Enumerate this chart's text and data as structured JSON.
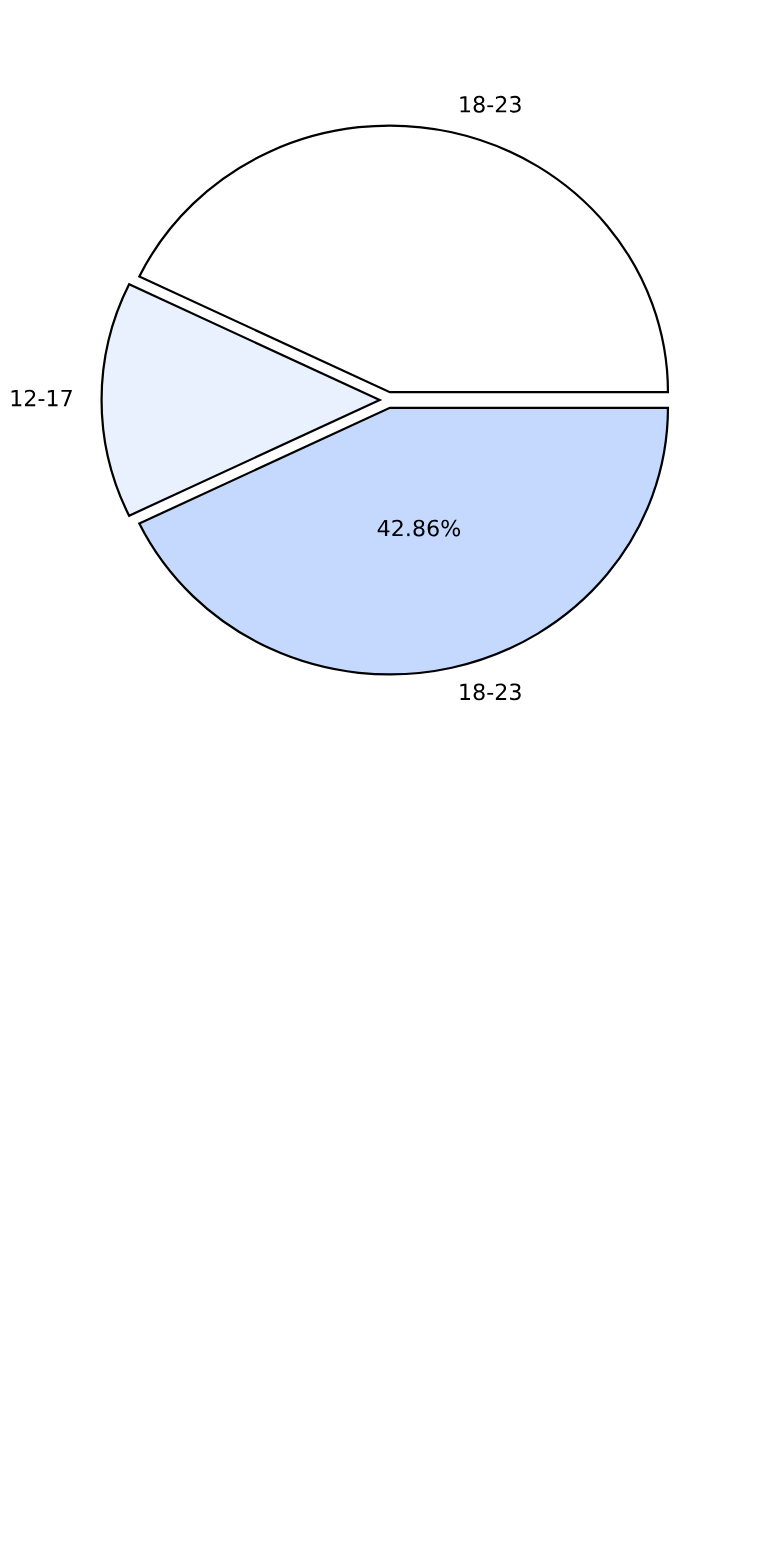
{
  "chart_data": {
    "type": "pie",
    "categories": [
      "18-23",
      "12-17",
      "18-23"
    ],
    "values": [
      42.86,
      14.29,
      42.86
    ],
    "colors": [
      "#c5d9fe",
      "#eaf1fe",
      "#ffffff"
    ],
    "value_labels": [
      "42.86%",
      null,
      null
    ]
  }
}
